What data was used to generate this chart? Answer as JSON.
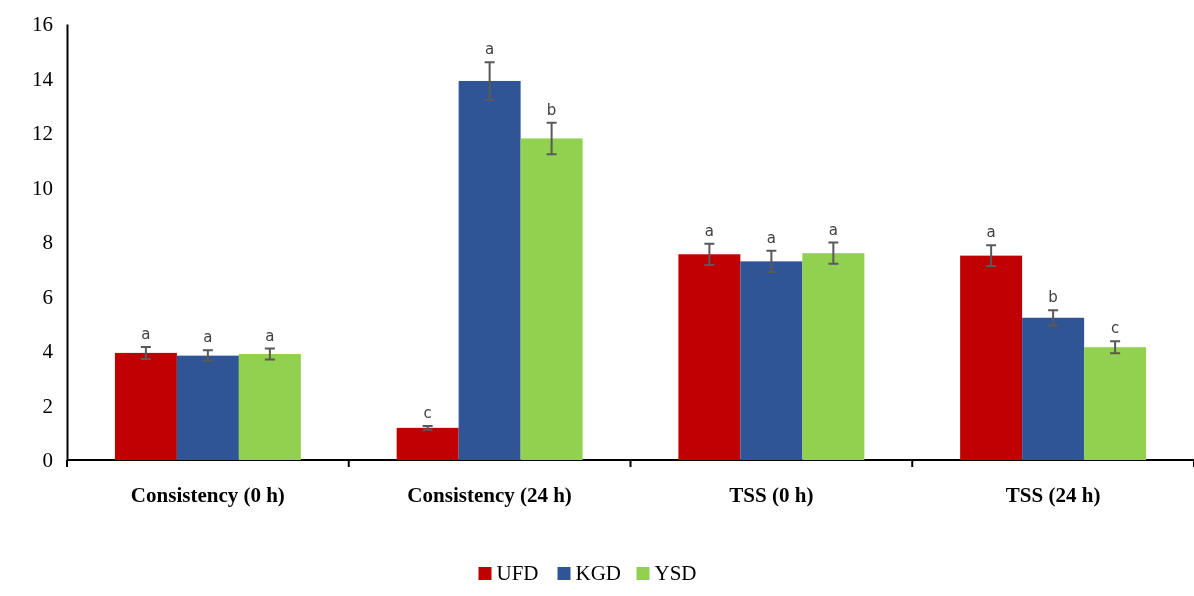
{
  "chart_data": {
    "type": "bar",
    "categories": [
      "Consistency (0 h)",
      "Consistency (24 h)",
      "TSS (0 h)",
      "TSS (24 h)"
    ],
    "series": [
      {
        "name": "UFD",
        "color": "#c00000",
        "values": [
          3.93,
          1.18,
          7.55,
          7.5
        ],
        "errors": [
          0.22,
          0.07,
          0.39,
          0.38
        ]
      },
      {
        "name": "KGD",
        "color": "#2f5597",
        "values": [
          3.83,
          13.91,
          7.29,
          5.22
        ],
        "errors": [
          0.2,
          0.69,
          0.39,
          0.28
        ]
      },
      {
        "name": "YSD",
        "color": "#92d050",
        "values": [
          3.89,
          11.8,
          7.59,
          4.14
        ],
        "errors": [
          0.2,
          0.58,
          0.39,
          0.22
        ]
      }
    ],
    "ylim": [
      0,
      16
    ],
    "yticks": [
      0,
      2,
      4,
      6,
      8,
      10,
      12,
      14,
      16
    ],
    "grid": false,
    "legend": "bottom",
    "annotations": [
      "a",
      "a",
      "a",
      "c",
      "a",
      "b",
      "a",
      "a",
      "a",
      "a",
      "b",
      "c"
    ]
  }
}
